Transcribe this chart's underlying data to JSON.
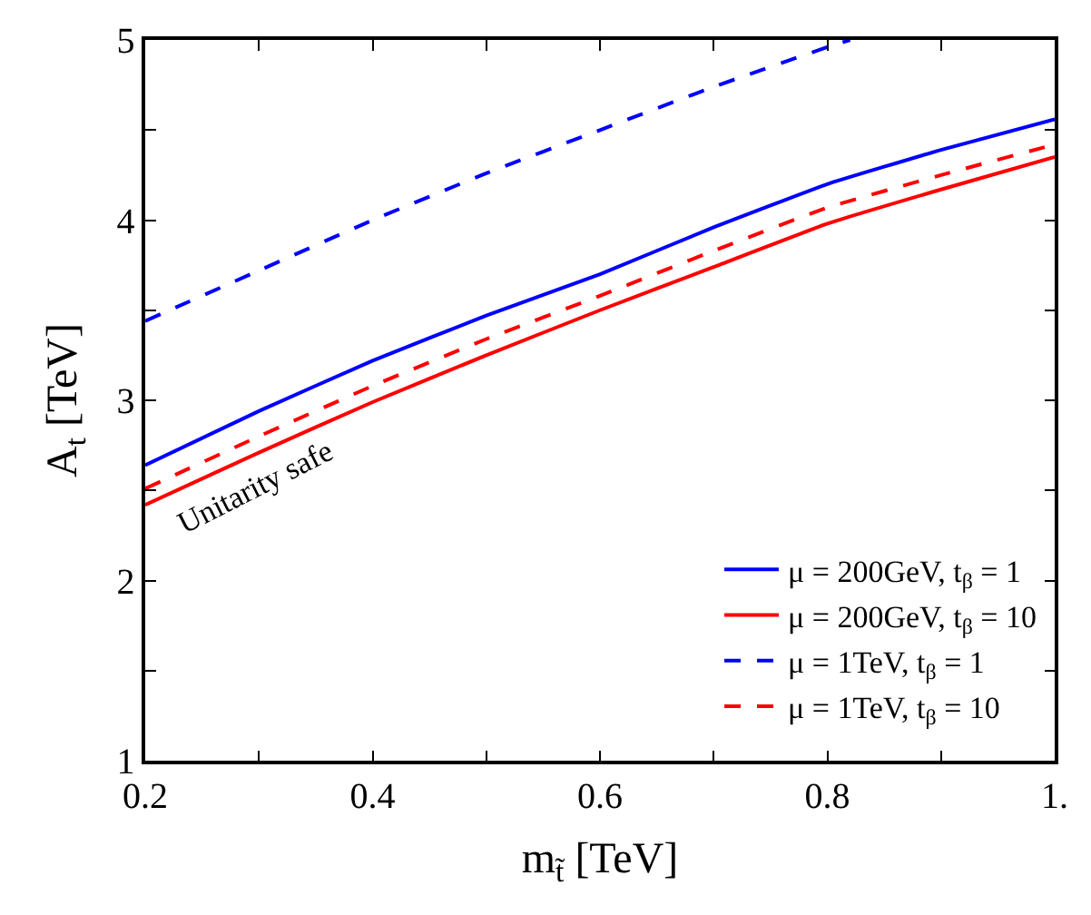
{
  "chart_data": {
    "type": "line",
    "xlabel": "m$_{t̃}$ [TeV]",
    "ylabel": "A$_{t}$ [TeV]",
    "xlim": [
      0.2,
      1.0
    ],
    "ylim": [
      1,
      5
    ],
    "xticks": [
      0.2,
      {
        "value": 0.3,
        "label": null
      },
      0.4,
      {
        "value": 0.5,
        "label": null
      },
      0.6,
      {
        "value": 0.7,
        "label": null
      },
      0.8,
      {
        "value": 0.9,
        "label": null
      },
      {
        "value": 1.0,
        "label": "1."
      }
    ],
    "yticks": [
      1,
      {
        "value": 1.5,
        "label": null
      },
      2,
      {
        "value": 2.5,
        "label": null
      },
      3,
      {
        "value": 3.5,
        "label": null
      },
      4,
      {
        "value": 4.5,
        "label": null
      },
      5
    ],
    "legend": "bottom right",
    "marker": "none",
    "series": [
      {
        "name": "μ = 200GeV, t$_{β}$ = 1",
        "color": "#0000ff",
        "line_style": "solid",
        "x": [
          0.2,
          0.3,
          0.4,
          0.5,
          0.6,
          0.7,
          0.8,
          0.9,
          1.0
        ],
        "values": [
          2.64,
          2.94,
          3.22,
          3.47,
          3.7,
          3.96,
          4.2,
          4.39,
          4.56
        ]
      },
      {
        "name": "μ = 200GeV, t$_{β}$ = 10",
        "color": "#ff0000",
        "line_style": "solid",
        "x": [
          0.2,
          0.3,
          0.4,
          0.5,
          0.6,
          0.7,
          0.8,
          0.9,
          1.0
        ],
        "values": [
          2.42,
          2.71,
          2.99,
          3.25,
          3.5,
          3.74,
          3.98,
          4.17,
          4.35
        ]
      },
      {
        "name": "μ = 1TeV, t$_{β}$ = 1",
        "color": "#0000ff",
        "line_style": "dashed",
        "x": [
          0.2,
          0.3,
          0.4,
          0.5,
          0.6,
          0.7,
          0.8,
          0.82
        ],
        "values": [
          3.44,
          3.72,
          4.0,
          4.26,
          4.5,
          4.74,
          4.96,
          5.0
        ]
      },
      {
        "name": "μ = 1TeV, t$_{β}$ = 10",
        "color": "#ff0000",
        "line_style": "dashed",
        "x": [
          0.2,
          0.3,
          0.4,
          0.5,
          0.6,
          0.7,
          0.8,
          0.9,
          1.0
        ],
        "values": [
          2.51,
          2.8,
          3.08,
          3.34,
          3.58,
          3.83,
          4.07,
          4.25,
          4.42
        ]
      }
    ],
    "annotations": [
      "Unitarity safe"
    ]
  }
}
